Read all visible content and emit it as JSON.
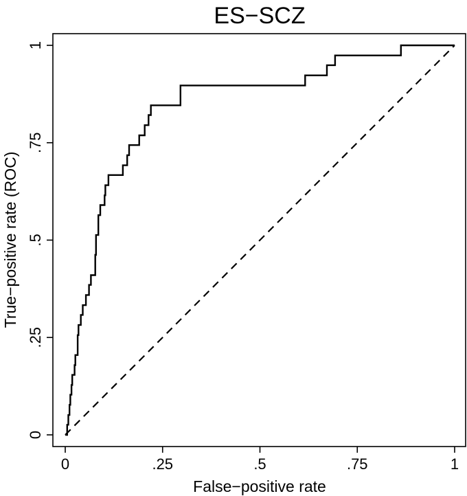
{
  "chart_data": {
    "type": "line",
    "title": "ES−SCZ",
    "xlabel": "False−positive rate",
    "ylabel": "True−positive rate (ROC)",
    "xlim": [
      0,
      1
    ],
    "ylim": [
      0,
      1
    ],
    "x_ticks": [
      {
        "value": 0,
        "label": "0"
      },
      {
        "value": 0.25,
        "label": ".25"
      },
      {
        "value": 0.5,
        "label": ".5"
      },
      {
        "value": 0.75,
        "label": ".75"
      },
      {
        "value": 1,
        "label": "1"
      }
    ],
    "y_ticks": [
      {
        "value": 0,
        "label": "0"
      },
      {
        "value": 0.25,
        "label": ".25"
      },
      {
        "value": 0.5,
        "label": ".5"
      },
      {
        "value": 0.75,
        "label": ".75"
      },
      {
        "value": 1,
        "label": "1"
      }
    ],
    "grid": false,
    "series": [
      {
        "style": "solid",
        "points": [
          [
            0.0,
            0.0
          ],
          [
            0.005,
            0.0
          ],
          [
            0.005,
            0.026
          ],
          [
            0.008,
            0.026
          ],
          [
            0.008,
            0.051
          ],
          [
            0.011,
            0.051
          ],
          [
            0.011,
            0.077
          ],
          [
            0.013,
            0.077
          ],
          [
            0.013,
            0.103
          ],
          [
            0.016,
            0.103
          ],
          [
            0.016,
            0.128
          ],
          [
            0.018,
            0.128
          ],
          [
            0.018,
            0.154
          ],
          [
            0.024,
            0.154
          ],
          [
            0.024,
            0.179
          ],
          [
            0.026,
            0.179
          ],
          [
            0.026,
            0.205
          ],
          [
            0.032,
            0.205
          ],
          [
            0.032,
            0.256
          ],
          [
            0.034,
            0.256
          ],
          [
            0.034,
            0.282
          ],
          [
            0.04,
            0.282
          ],
          [
            0.04,
            0.308
          ],
          [
            0.045,
            0.308
          ],
          [
            0.045,
            0.333
          ],
          [
            0.053,
            0.333
          ],
          [
            0.053,
            0.359
          ],
          [
            0.061,
            0.359
          ],
          [
            0.061,
            0.385
          ],
          [
            0.066,
            0.385
          ],
          [
            0.066,
            0.41
          ],
          [
            0.077,
            0.41
          ],
          [
            0.077,
            0.462
          ],
          [
            0.079,
            0.462
          ],
          [
            0.079,
            0.513
          ],
          [
            0.085,
            0.513
          ],
          [
            0.085,
            0.564
          ],
          [
            0.09,
            0.564
          ],
          [
            0.09,
            0.59
          ],
          [
            0.101,
            0.59
          ],
          [
            0.101,
            0.615
          ],
          [
            0.103,
            0.615
          ],
          [
            0.103,
            0.641
          ],
          [
            0.111,
            0.641
          ],
          [
            0.111,
            0.667
          ],
          [
            0.148,
            0.667
          ],
          [
            0.148,
            0.692
          ],
          [
            0.159,
            0.692
          ],
          [
            0.159,
            0.718
          ],
          [
            0.164,
            0.718
          ],
          [
            0.164,
            0.744
          ],
          [
            0.19,
            0.744
          ],
          [
            0.19,
            0.769
          ],
          [
            0.204,
            0.769
          ],
          [
            0.204,
            0.795
          ],
          [
            0.214,
            0.795
          ],
          [
            0.214,
            0.821
          ],
          [
            0.22,
            0.821
          ],
          [
            0.22,
            0.846
          ],
          [
            0.296,
            0.846
          ],
          [
            0.296,
            0.897
          ],
          [
            0.616,
            0.897
          ],
          [
            0.616,
            0.923
          ],
          [
            0.672,
            0.923
          ],
          [
            0.672,
            0.949
          ],
          [
            0.693,
            0.949
          ],
          [
            0.693,
            0.974
          ],
          [
            0.862,
            0.974
          ],
          [
            0.862,
            1.0
          ],
          [
            1.0,
            1.0
          ]
        ]
      },
      {
        "style": "dashed",
        "points": [
          [
            0,
            0
          ],
          [
            1,
            1
          ]
        ]
      }
    ]
  }
}
